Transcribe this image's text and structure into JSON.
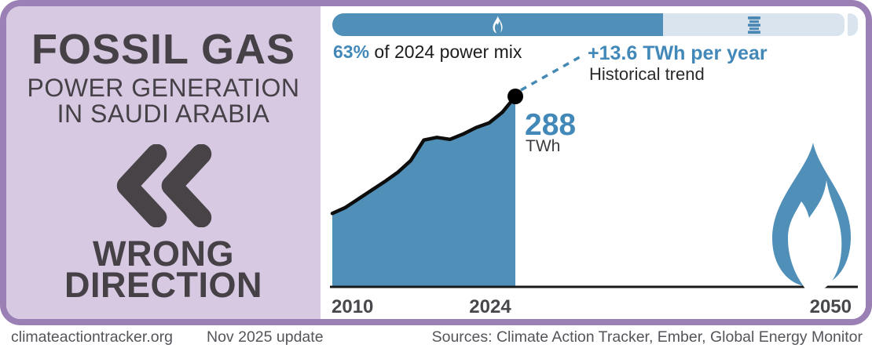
{
  "colors": {
    "accent_blue": "#4f8fb8",
    "text_blue": "#4288b8",
    "light_blue": "#d9e4ee",
    "lavender_panel": "#d6c9e1",
    "purple_border": "#9a80b4",
    "dark_text": "#454147",
    "footer_text": "#54555a",
    "line_black": "#111111"
  },
  "left_panel": {
    "title": "FOSSIL GAS",
    "subtitle_lines": [
      "POWER GENERATION",
      "IN SAUDI ARABIA"
    ],
    "direction_icon": "double-chevron-left",
    "verdict_lines": [
      "WRONG",
      "DIRECTION"
    ]
  },
  "power_mix_bar": {
    "segments": [
      {
        "name": "fossil-gas",
        "icon": "flame-icon",
        "pct": 63
      },
      {
        "name": "oil",
        "icon": "oil-barrel-icon",
        "pct": 35
      },
      {
        "name": "other",
        "pct": 2
      }
    ],
    "caption_value": "63%",
    "caption_text": " of 2024 power mix"
  },
  "trend_callout": {
    "rate": "+13.6 TWh per year",
    "label": "Historical trend"
  },
  "latest_point": {
    "value": "288",
    "unit": "TWh"
  },
  "footer": {
    "site": "climateactiontracker.org",
    "update": "Nov 2025 update",
    "sources": "Sources: Climate Action Tracker, Ember, Global Energy Monitor"
  },
  "chart_data": {
    "type": "area",
    "title": "Fossil gas power generation in Saudi Arabia",
    "x": [
      2010,
      2011,
      2012,
      2013,
      2014,
      2015,
      2016,
      2017,
      2018,
      2019,
      2020,
      2021,
      2022,
      2023,
      2024
    ],
    "values": [
      111,
      120,
      133,
      146,
      159,
      173,
      191,
      222,
      226,
      223,
      231,
      241,
      248,
      264,
      288
    ],
    "unit": "TWh",
    "ylabel": "TWh",
    "xlim": [
      2010,
      2050
    ],
    "ylim": [
      0,
      300
    ],
    "x_ticks": [
      "2010",
      "2024",
      "2050"
    ],
    "grid": false,
    "legend": false,
    "latest": {
      "year": 2024,
      "value": 288
    },
    "trend_rate_twh_per_year": 13.6,
    "share_of_2024_power_mix_pct": 63
  }
}
